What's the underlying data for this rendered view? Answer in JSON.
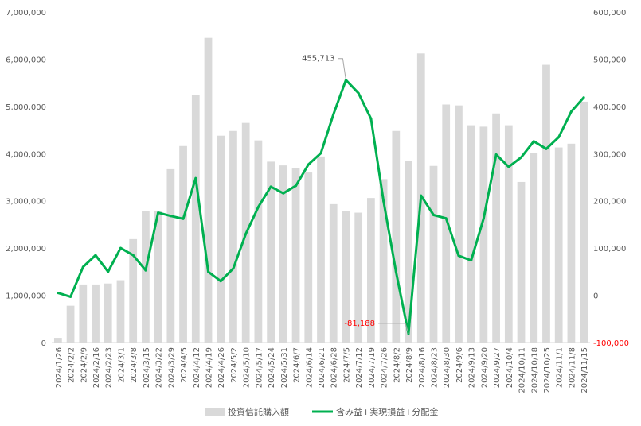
{
  "chart_data": {
    "type": "bar+line",
    "categories": [
      "2024/1/26",
      "2024/2/2",
      "2024/2/9",
      "2024/2/16",
      "2024/2/23",
      "2024/3/1",
      "2024/3/8",
      "2024/3/15",
      "2024/3/22",
      "2024/3/29",
      "2024/4/5",
      "2024/4/12",
      "2024/4/19",
      "2024/4/26",
      "2024/5/2",
      "2024/5/10",
      "2024/5/17",
      "2024/5/24",
      "2024/5/31",
      "2024/6/7",
      "2024/6/14",
      "2024/6/21",
      "2024/6/28",
      "2024/7/5",
      "2024/7/12",
      "2024/7/19",
      "2024/7/26",
      "2024/8/2",
      "2024/8/9",
      "2024/8/16",
      "2024/8/23",
      "2024/8/30",
      "2024/9/6",
      "2024/9/13",
      "2024/9/20",
      "2024/9/27",
      "2024/10/4",
      "2024/10/11",
      "2024/10/18",
      "2024/10/25",
      "2024/11/1",
      "2024/11/8",
      "2024/11/15"
    ],
    "series": [
      {
        "name": "投資信託購入額",
        "axis": "left",
        "kind": "bar",
        "color": "#d9d9d9",
        "values": [
          100000,
          780000,
          1230000,
          1230000,
          1250000,
          1320000,
          2190000,
          2780000,
          2780000,
          3670000,
          4160000,
          5250000,
          6450000,
          4380000,
          4480000,
          4650000,
          4280000,
          3830000,
          3750000,
          3700000,
          3600000,
          3940000,
          2930000,
          2780000,
          2750000,
          3060000,
          3460000,
          4480000,
          3840000,
          6120000,
          3740000,
          5040000,
          5020000,
          4600000,
          4570000,
          4850000,
          4600000,
          3400000,
          4020000,
          5880000,
          4130000,
          4210000,
          5100000
        ]
      },
      {
        "name": "含み益+実現損益+分配金",
        "axis": "right",
        "kind": "line",
        "color": "#00b050",
        "values": [
          5000,
          -3000,
          60000,
          85000,
          50000,
          100000,
          85000,
          53000,
          175000,
          168000,
          162000,
          248000,
          50000,
          30000,
          57000,
          130000,
          187000,
          230000,
          216000,
          232000,
          277000,
          301000,
          383000,
          455713,
          428000,
          374000,
          200000,
          50000,
          -81188,
          211000,
          170000,
          163000,
          84000,
          74000,
          163000,
          298000,
          272000,
          292000,
          326000,
          310000,
          335000,
          389000,
          419000
        ]
      }
    ],
    "y_left": {
      "min": 0,
      "max": 7000000,
      "ticks": [
        "0",
        "1,000,000",
        "2,000,000",
        "3,000,000",
        "4,000,000",
        "5,000,000",
        "6,000,000",
        "7,000,000"
      ]
    },
    "y_right": {
      "min": -100000,
      "max": 600000,
      "ticks": [
        "-100,000",
        "0",
        "100,000",
        "200,000",
        "300,000",
        "400,000",
        "500,000",
        "600,000"
      ],
      "negative_tick_color": "#ff0000"
    },
    "annotations": [
      {
        "text": "455,713",
        "index": 23,
        "color": "#404040"
      },
      {
        "text": "-81,188",
        "index": 28,
        "color": "#ff0000"
      }
    ],
    "grid": false,
    "legend": "bottom"
  }
}
